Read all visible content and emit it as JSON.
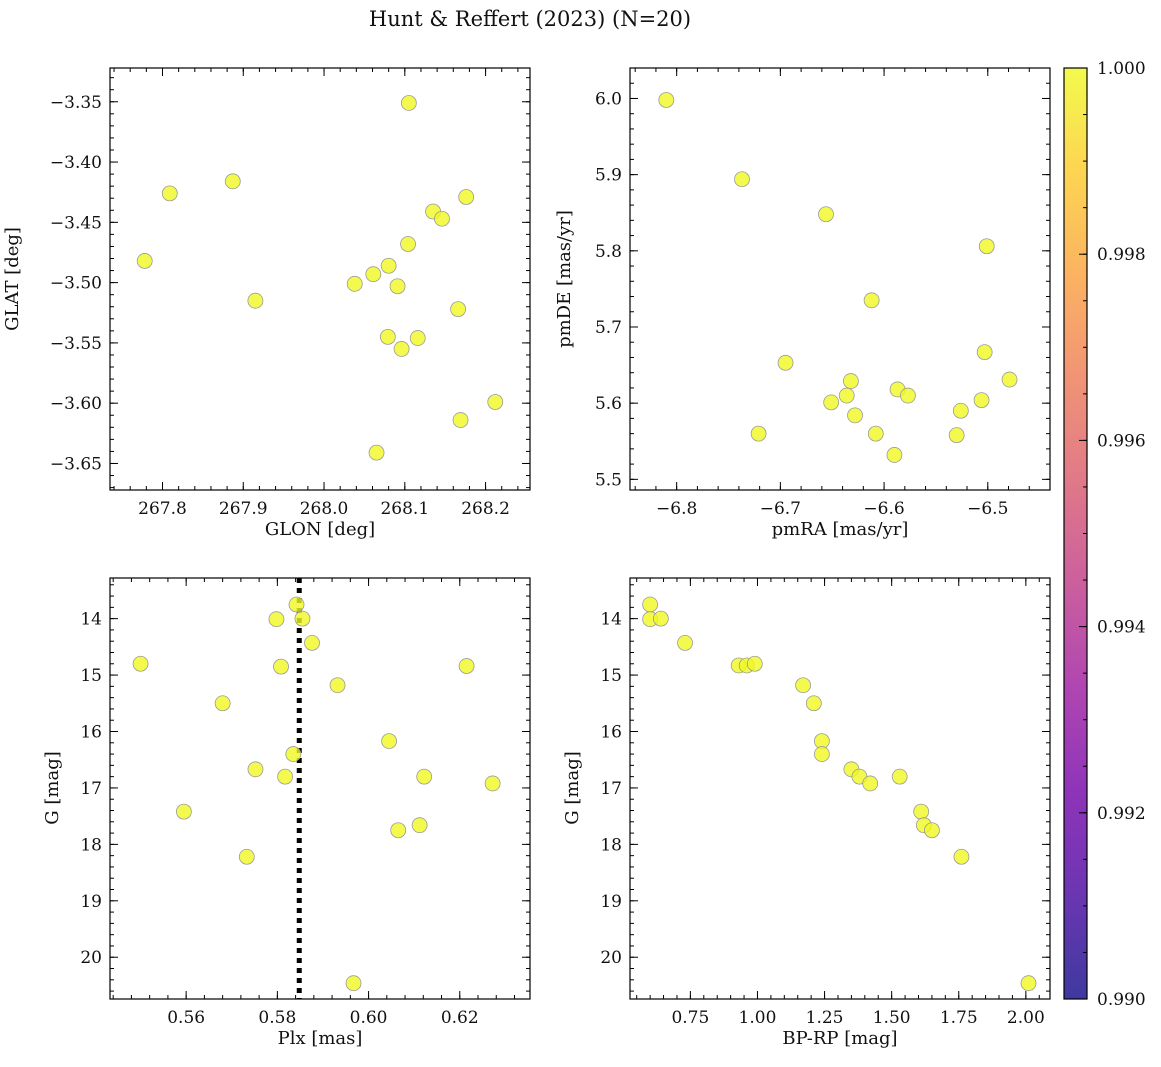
{
  "title": "Hunt & Reffert (2023) (N=20)",
  "point_color": "#f0f921",
  "chart_data": [
    {
      "id": "pos",
      "type": "scatter",
      "xlabel": "GLON [deg]",
      "ylabel": "GLAT [deg]",
      "xlim": [
        267.735,
        268.255
      ],
      "ylim": [
        -3.672,
        -3.322
      ],
      "invert_y": false,
      "xticks": [
        267.8,
        267.9,
        268.0,
        268.1,
        268.2
      ],
      "xtick_labels": [
        "267.8",
        "267.9",
        "268.0",
        "268.1",
        "268.2"
      ],
      "yticks": [
        -3.65,
        -3.6,
        -3.55,
        -3.5,
        -3.45,
        -3.4,
        -3.35
      ],
      "ytick_labels": [
        "−3.65",
        "−3.60",
        "−3.55",
        "−3.50",
        "−3.45",
        "−3.40",
        "−3.35"
      ],
      "x_minor_step": 0.02,
      "y_minor_step": 0.01,
      "x": [
        267.778,
        267.809,
        267.887,
        267.915,
        268.038,
        268.061,
        268.08,
        268.079,
        268.091,
        268.096,
        268.104,
        268.105,
        268.116,
        268.135,
        268.146,
        268.166,
        268.169,
        268.176,
        268.212,
        268.065
      ],
      "y": [
        -3.482,
        -3.426,
        -3.416,
        -3.515,
        -3.501,
        -3.493,
        -3.486,
        -3.545,
        -3.503,
        -3.555,
        -3.468,
        -3.351,
        -3.546,
        -3.441,
        -3.447,
        -3.522,
        -3.614,
        -3.429,
        -3.599,
        -3.641
      ]
    },
    {
      "id": "pm",
      "type": "scatter",
      "xlabel": "pmRA [mas/yr]",
      "ylabel": "pmDE [mas/yr]",
      "xlim": [
        -6.845,
        -6.44
      ],
      "ylim": [
        5.486,
        6.04
      ],
      "invert_y": false,
      "xticks": [
        -6.8,
        -6.7,
        -6.6,
        -6.5
      ],
      "xtick_labels": [
        "−6.8",
        "−6.7",
        "−6.6",
        "−6.5"
      ],
      "yticks": [
        5.5,
        5.6,
        5.7,
        5.8,
        5.9,
        6.0
      ],
      "ytick_labels": [
        "5.5",
        "5.6",
        "5.7",
        "5.8",
        "5.9",
        "6.0"
      ],
      "x_minor_step": 0.02,
      "y_minor_step": 0.02,
      "x": [
        -6.81,
        -6.737,
        -6.656,
        -6.721,
        -6.695,
        -6.651,
        -6.632,
        -6.636,
        -6.628,
        -6.612,
        -6.608,
        -6.59,
        -6.587,
        -6.577,
        -6.53,
        -6.526,
        -6.506,
        -6.503,
        -6.501,
        -6.479
      ],
      "y": [
        5.998,
        5.894,
        5.848,
        5.56,
        5.653,
        5.601,
        5.629,
        5.61,
        5.584,
        5.735,
        5.56,
        5.532,
        5.618,
        5.61,
        5.558,
        5.59,
        5.604,
        5.667,
        5.806,
        5.631
      ]
    },
    {
      "id": "plx",
      "type": "scatter",
      "xlabel": "Plx [mas]",
      "ylabel": "G [mag]",
      "xlim": [
        0.5433,
        0.6354
      ],
      "ylim": [
        20.74,
        13.28
      ],
      "invert_y": true,
      "xticks": [
        0.56,
        0.58,
        0.6,
        0.62
      ],
      "xtick_labels": [
        "0.56",
        "0.58",
        "0.60",
        "0.62"
      ],
      "yticks": [
        14,
        15,
        16,
        17,
        18,
        19,
        20
      ],
      "ytick_labels": [
        "14",
        "15",
        "16",
        "17",
        "18",
        "19",
        "20"
      ],
      "x_minor_step": 0.004,
      "y_minor_step": 0.2,
      "vline": 0.5848,
      "x": [
        0.55,
        0.5595,
        0.568,
        0.5733,
        0.5752,
        0.5798,
        0.5808,
        0.5817,
        0.5835,
        0.5842,
        0.5855,
        0.5876,
        0.5932,
        0.5967,
        0.6045,
        0.6065,
        0.6112,
        0.6122,
        0.6215,
        0.6272
      ],
      "y": [
        14.8,
        17.42,
        15.5,
        18.22,
        16.67,
        14.01,
        14.85,
        16.8,
        16.4,
        13.75,
        14.0,
        14.43,
        15.18,
        20.46,
        16.17,
        17.75,
        17.66,
        16.8,
        14.84,
        16.92
      ]
    },
    {
      "id": "cmd",
      "type": "scatter",
      "xlabel": "BP-RP [mag]",
      "ylabel": "G [mag]",
      "xlim": [
        0.525,
        2.09
      ],
      "ylim": [
        20.74,
        13.28
      ],
      "invert_y": true,
      "xticks": [
        0.75,
        1.0,
        1.25,
        1.5,
        1.75,
        2.0
      ],
      "xtick_labels": [
        "0.75",
        "1.00",
        "1.25",
        "1.50",
        "1.75",
        "2.00"
      ],
      "yticks": [
        14,
        15,
        16,
        17,
        18,
        19,
        20
      ],
      "ytick_labels": [
        "14",
        "15",
        "16",
        "17",
        "18",
        "19",
        "20"
      ],
      "x_minor_step": 0.05,
      "y_minor_step": 0.2,
      "x": [
        0.6,
        0.6,
        0.64,
        0.73,
        0.93,
        0.96,
        0.99,
        1.17,
        1.21,
        1.24,
        1.24,
        1.35,
        1.38,
        1.42,
        1.53,
        1.61,
        1.62,
        1.65,
        1.76,
        2.01
      ],
      "y": [
        13.75,
        14.01,
        14.0,
        14.43,
        14.83,
        14.83,
        14.8,
        15.18,
        15.5,
        16.17,
        16.4,
        16.67,
        16.8,
        16.92,
        16.8,
        17.42,
        17.66,
        17.75,
        18.22,
        20.46
      ]
    }
  ],
  "colorbar": {
    "min": 0.99,
    "max": 1.0,
    "ticks": [
      0.99,
      0.992,
      0.994,
      0.996,
      0.998,
      1.0
    ],
    "tick_labels": [
      "0.990",
      "0.992",
      "0.994",
      "0.996",
      "0.998",
      "1.000"
    ],
    "minor_step": 0.0005,
    "colormap_stops": [
      "#0d0887",
      "#46039f",
      "#7201a8",
      "#9c179e",
      "#bd3786",
      "#d8576b",
      "#ed7953",
      "#fb9f3a",
      "#fdca26",
      "#f0f921"
    ]
  }
}
